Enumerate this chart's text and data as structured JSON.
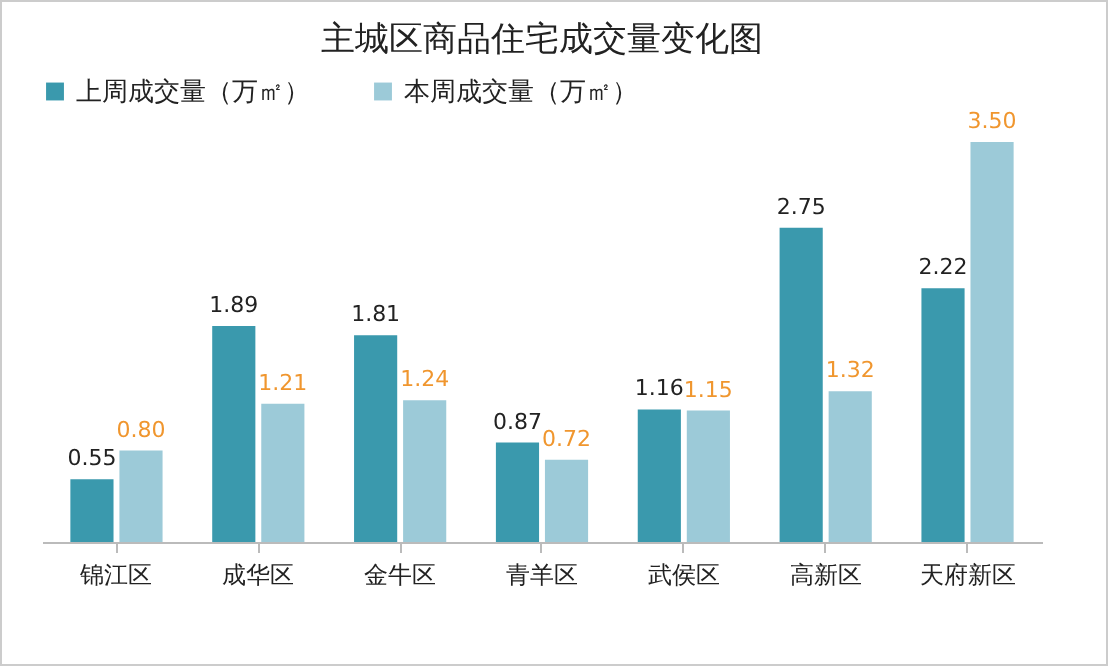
{
  "chart_data": {
    "type": "bar",
    "title": "主城区商品住宅成交量变化图",
    "categories": [
      "锦江区",
      "成华区",
      "金牛区",
      "青羊区",
      "武侯区",
      "高新区",
      "天府新区"
    ],
    "series": [
      {
        "name": "上周成交量（万㎡）",
        "color": "#3a99ad",
        "values": [
          0.55,
          1.89,
          1.81,
          0.87,
          1.16,
          2.75,
          2.22
        ],
        "value_labels": [
          "0.55",
          "1.89",
          "1.81",
          "0.87",
          "1.16",
          "2.75",
          "2.22"
        ]
      },
      {
        "name": "本周成交量（万㎡）",
        "color": "#9ccad8",
        "values": [
          0.8,
          1.21,
          1.24,
          0.72,
          1.15,
          1.32,
          3.5
        ],
        "value_labels": [
          "0.80",
          "1.21",
          "1.24",
          "0.72",
          "1.15",
          "1.32",
          "3.50"
        ]
      }
    ],
    "legend": "top",
    "grid": false
  }
}
